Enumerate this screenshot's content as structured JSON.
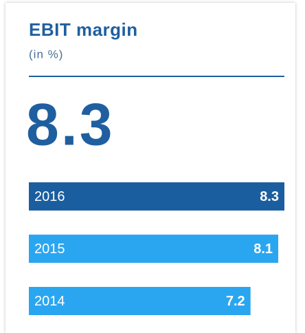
{
  "chart_data": {
    "type": "bar",
    "title": "EBIT margin",
    "subtitle": "(in %)",
    "categories": [
      "2016",
      "2015",
      "2014"
    ],
    "values": [
      8.3,
      8.1,
      7.2
    ],
    "colors": [
      "#1b5e9f",
      "#2aa6f1",
      "#2aa6f1"
    ],
    "title_color": "#1f5f9f"
  }
}
